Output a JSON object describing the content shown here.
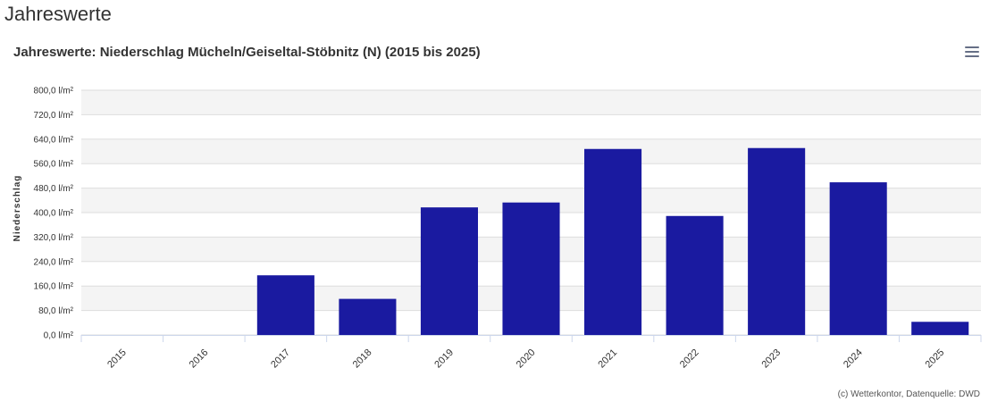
{
  "page": {
    "heading": "Jahreswerte"
  },
  "credits": "(c) Wetterkontor, Datenquelle: DWD",
  "menu": {
    "icon": "hamburger-menu-icon"
  },
  "chart_data": {
    "type": "bar",
    "title": "Jahreswerte: Niederschlag Mücheln/Geiseltal-Stöbnitz (N) (2015 bis 2025)",
    "xlabel": "",
    "ylabel": "Niederschlag",
    "unit": "l/m²",
    "categories": [
      "2015",
      "2016",
      "2017",
      "2018",
      "2019",
      "2020",
      "2021",
      "2022",
      "2023",
      "2024",
      "2025"
    ],
    "values": [
      0,
      0,
      195,
      118,
      417,
      433,
      608,
      389,
      611,
      499,
      43
    ],
    "ylim": [
      0,
      800
    ],
    "yticks": [
      "0,0 l/m²",
      "80,0 l/m²",
      "160,0 l/m²",
      "240,0 l/m²",
      "320,0 l/m²",
      "400,0 l/m²",
      "480,0 l/m²",
      "560,0 l/m²",
      "640,0 l/m²",
      "720,0 l/m²",
      "800,0 l/m²"
    ],
    "grid": true,
    "colors": {
      "bar": "#1a1aa0",
      "band": "#f4f4f4",
      "grid": "#dddddd"
    }
  }
}
